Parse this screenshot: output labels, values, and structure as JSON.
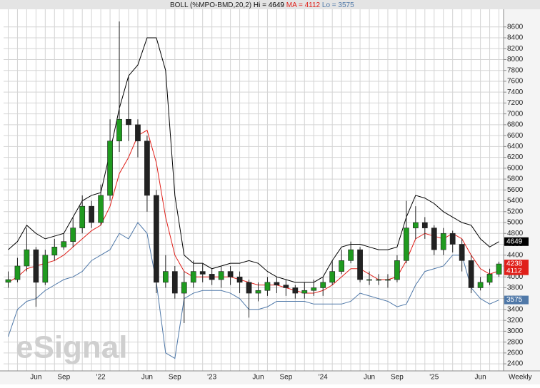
{
  "chart_data": {
    "type": "candlestick",
    "title": "BOLL (%MPO-BMD,20,2)",
    "watermark": "eSignal",
    "period": "Weekly",
    "categories": [
      null,
      null,
      null,
      "Jun",
      null,
      null,
      "Sep",
      null,
      null,
      null,
      "'22",
      null,
      null,
      null,
      null,
      "Jun",
      null,
      null,
      "Sep",
      null,
      null,
      null,
      "'23",
      null,
      null,
      null,
      null,
      "Jun",
      null,
      null,
      "Sep",
      null,
      null,
      null,
      "'24",
      null,
      null,
      null,
      null,
      "Jun",
      null,
      null,
      "Sep",
      null,
      null,
      null,
      "'25",
      null,
      null,
      null,
      null,
      "Jun",
      null,
      null
    ],
    "open": [
      3900,
      3950,
      4200,
      4500,
      3900,
      4400,
      4550,
      4650,
      4900,
      5300,
      5000,
      5500,
      6500,
      6900,
      6800,
      6500,
      5500,
      3900,
      4100,
      3700,
      3900,
      4100,
      4050,
      3950,
      4100,
      4000,
      3900,
      3700,
      3750,
      3900,
      3850,
      3800,
      3700,
      3750,
      3800,
      3900,
      4100,
      4300,
      4500,
      3950,
      3950,
      3950,
      3950,
      4300,
      4900,
      5000,
      4900,
      4500,
      4800,
      4600,
      4300,
      3800,
      3900,
      4050
    ],
    "high": [
      4100,
      4350,
      4900,
      4550,
      4500,
      4700,
      4800,
      5100,
      5500,
      5400,
      5700,
      6900,
      8700,
      7700,
      6900,
      6600,
      5600,
      4400,
      4200,
      4100,
      4300,
      4250,
      4150,
      4200,
      4200,
      4100,
      3950,
      3900,
      4000,
      4000,
      3950,
      3850,
      3900,
      3950,
      4000,
      4300,
      4500,
      4650,
      4550,
      4100,
      4050,
      4050,
      4400,
      5400,
      5300,
      5100,
      4950,
      4900,
      4850,
      4700,
      4400,
      4000,
      4150,
      4280
    ],
    "low": [
      3800,
      3900,
      4100,
      3450,
      3850,
      4300,
      4500,
      4550,
      4800,
      4900,
      4950,
      5400,
      6300,
      6500,
      6200,
      5200,
      3700,
      3800,
      3600,
      3150,
      3800,
      3900,
      3850,
      3800,
      3850,
      3700,
      3250,
      3550,
      3650,
      3700,
      3650,
      3600,
      3600,
      3650,
      3650,
      3850,
      4050,
      4250,
      3900,
      3850,
      3850,
      3800,
      3900,
      4250,
      4700,
      4700,
      4400,
      4400,
      4450,
      4100,
      3700,
      3750,
      3850,
      4000
    ],
    "close": [
      3950,
      4200,
      4500,
      3900,
      4400,
      4550,
      4650,
      4900,
      5300,
      5000,
      5500,
      6500,
      6900,
      6800,
      6500,
      5500,
      3900,
      4100,
      3700,
      3900,
      4100,
      4050,
      3950,
      4100,
      4000,
      3900,
      3700,
      3750,
      3900,
      3850,
      3800,
      3700,
      3750,
      3800,
      3900,
      4100,
      4300,
      4500,
      3950,
      3950,
      3950,
      3950,
      4300,
      4900,
      5000,
      4900,
      4500,
      4800,
      4600,
      4300,
      3800,
      3900,
      4050,
      4238
    ],
    "up_color": "#1f9a1f",
    "down_color": "#222222",
    "close_tag_color": "#e0201a",
    "series": [
      {
        "label": "Hi = 4649",
        "color": "#000000",
        "values": [
          4500,
          4650,
          4950,
          4800,
          4700,
          4750,
          4800,
          5100,
          5400,
          5500,
          5550,
          6300,
          7100,
          7700,
          7900,
          8400,
          8400,
          7800,
          5500,
          4400,
          4250,
          4250,
          4150,
          4200,
          4250,
          4250,
          4300,
          4250,
          4100,
          4000,
          3950,
          3900,
          3900,
          3900,
          4000,
          4300,
          4550,
          4600,
          4600,
          4550,
          4500,
          4500,
          4550,
          5100,
          5500,
          5450,
          5350,
          5200,
          5100,
          5000,
          4950,
          4700,
          4550,
          4649
        ]
      },
      {
        "label": "MA = 4112",
        "color": "#e0201a",
        "values": [
          3900,
          4000,
          4150,
          4200,
          4250,
          4300,
          4400,
          4550,
          4700,
          4850,
          4950,
          5300,
          5900,
          6200,
          6600,
          6700,
          6100,
          5100,
          4400,
          4100,
          4000,
          4000,
          4000,
          4000,
          4000,
          3950,
          3900,
          3850,
          3850,
          3850,
          3800,
          3750,
          3700,
          3700,
          3750,
          3850,
          4000,
          4150,
          4150,
          4050,
          3950,
          3950,
          4000,
          4300,
          4700,
          4800,
          4750,
          4700,
          4800,
          4700,
          4400,
          4150,
          4050,
          4112
        ]
      },
      {
        "label": "Lo = 3575",
        "color": "#4f78a8",
        "values": [
          2900,
          3400,
          3550,
          3600,
          3750,
          3850,
          3950,
          4000,
          4100,
          4300,
          4400,
          4500,
          4800,
          4700,
          5000,
          4800,
          3900,
          2600,
          2500,
          3600,
          3700,
          3750,
          3750,
          3750,
          3700,
          3600,
          3400,
          3400,
          3450,
          3550,
          3550,
          3550,
          3550,
          3500,
          3500,
          3500,
          3500,
          3550,
          3700,
          3650,
          3600,
          3550,
          3450,
          3500,
          3850,
          4100,
          4150,
          4200,
          4400,
          4400,
          3800,
          3600,
          3500,
          3575
        ]
      }
    ],
    "ylim": [
      2270,
      8925
    ],
    "yticks": [
      2400,
      2600,
      2800,
      3000,
      3200,
      3400,
      3600,
      3800,
      4000,
      4200,
      4400,
      4600,
      4800,
      5000,
      5200,
      5400,
      5600,
      5800,
      6000,
      6200,
      6400,
      6600,
      6800,
      7000,
      7200,
      7400,
      7600,
      7800,
      8000,
      8200,
      8400,
      8600
    ],
    "grid": true
  }
}
